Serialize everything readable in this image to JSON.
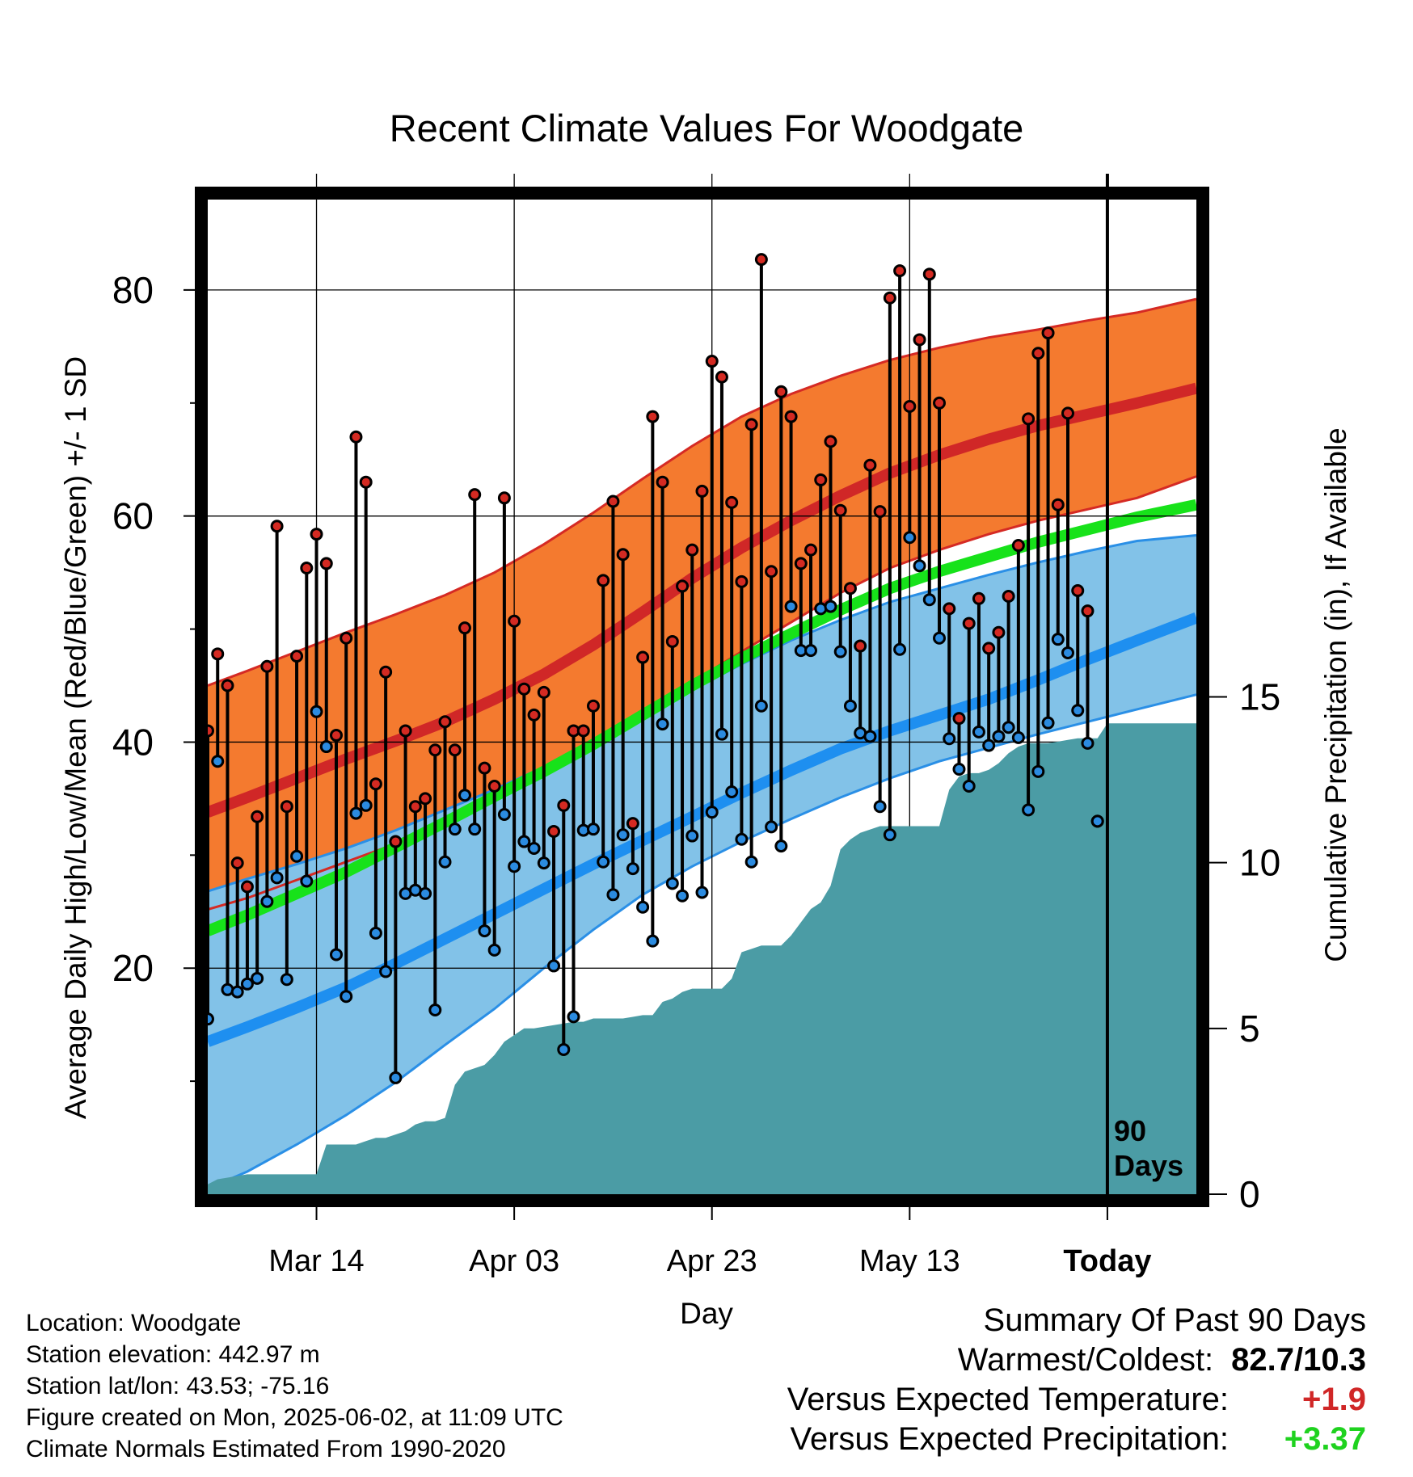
{
  "chart_data": {
    "type": "line",
    "title": "Recent Climate Values For Woodgate",
    "xlabel": "Day",
    "ylabel_left": "Average Daily High/Low/Mean (Red/Blue/Green) +/- 1 SD",
    "ylabel_right": "Cumulative Precipitation (in), If Available",
    "day_range": [
      1,
      101
    ],
    "y_left_range": [
      0,
      88
    ],
    "y_right_range": [
      0,
      30
    ],
    "x_ticks": [
      {
        "day": 12,
        "label": "Mar 14"
      },
      {
        "day": 32,
        "label": "Apr 03"
      },
      {
        "day": 52,
        "label": "Apr 23"
      },
      {
        "day": 72,
        "label": "May 13"
      },
      {
        "day": 92,
        "label": "Today"
      }
    ],
    "y_left_ticks": [
      {
        "value": 20,
        "label": "20"
      },
      {
        "value": 40,
        "label": "40"
      },
      {
        "value": 60,
        "label": "60"
      },
      {
        "value": 80,
        "label": "80"
      }
    ],
    "y_left_minor": [
      10,
      30,
      50,
      70
    ],
    "y_right_ticks": [
      {
        "value": 0,
        "label": "0"
      },
      {
        "value": 5,
        "label": "5"
      },
      {
        "value": 10,
        "label": "10"
      },
      {
        "value": 15,
        "label": "15"
      }
    ],
    "today_day": 92,
    "today_label_line1": "90",
    "today_label_line2": "Days",
    "grid": true,
    "normals": {
      "days": [
        1,
        5,
        10,
        15,
        20,
        25,
        30,
        35,
        40,
        45,
        50,
        55,
        60,
        65,
        70,
        75,
        80,
        85,
        90,
        95,
        101
      ],
      "high_mean": [
        33.8,
        35.1,
        36.8,
        38.5,
        40.1,
        41.8,
        43.8,
        46.0,
        48.6,
        51.5,
        54.5,
        57.2,
        59.6,
        61.8,
        63.8,
        65.4,
        66.8,
        68.0,
        69.0,
        70.0,
        71.3
      ],
      "high_upper": [
        45.0,
        46.3,
        48.0,
        49.7,
        51.3,
        53.0,
        55.0,
        57.5,
        60.3,
        63.3,
        66.2,
        68.8,
        70.8,
        72.4,
        73.8,
        74.9,
        75.8,
        76.5,
        77.3,
        78.0,
        79.2
      ],
      "high_lower": [
        25.2,
        26.2,
        27.8,
        29.4,
        31.0,
        32.8,
        34.8,
        37.0,
        39.5,
        42.3,
        45.3,
        48.0,
        50.6,
        53.2,
        55.4,
        57.0,
        58.4,
        59.6,
        60.6,
        61.6,
        63.5
      ],
      "low_mean": [
        13.5,
        14.8,
        16.5,
        18.3,
        20.4,
        22.6,
        24.8,
        27.0,
        29.2,
        31.3,
        33.4,
        35.5,
        37.5,
        39.4,
        41.0,
        42.4,
        43.8,
        45.5,
        47.3,
        49.0,
        51.0
      ],
      "low_upper": [
        26.8,
        27.9,
        29.2,
        30.6,
        32.2,
        34.0,
        35.8,
        37.8,
        40.0,
        42.2,
        44.6,
        46.9,
        49.0,
        50.8,
        52.4,
        53.6,
        54.8,
        55.9,
        56.9,
        57.8,
        58.3
      ],
      "low_lower": [
        0.5,
        2.0,
        4.4,
        7.0,
        9.9,
        13.2,
        16.4,
        20.0,
        23.4,
        26.5,
        29.0,
        31.2,
        33.2,
        35.1,
        36.8,
        38.3,
        39.5,
        40.7,
        41.8,
        42.9,
        44.2
      ],
      "avg_mean": [
        23.3,
        24.7,
        26.6,
        28.5,
        30.7,
        32.9,
        35.2,
        37.4,
        39.8,
        42.4,
        45.0,
        47.4,
        49.6,
        51.7,
        53.6,
        55.1,
        56.4,
        57.7,
        58.8,
        59.9,
        61.0
      ]
    },
    "observed": {
      "days": [
        1,
        2,
        3,
        4,
        5,
        6,
        7,
        8,
        9,
        10,
        11,
        12,
        13,
        14,
        15,
        16,
        17,
        18,
        19,
        20,
        21,
        22,
        23,
        24,
        25,
        26,
        27,
        28,
        29,
        30,
        31,
        32,
        33,
        34,
        35,
        36,
        37,
        38,
        39,
        40,
        41,
        42,
        43,
        44,
        45,
        46,
        47,
        48,
        49,
        50,
        51,
        52,
        53,
        54,
        55,
        56,
        57,
        58,
        59,
        60,
        61,
        62,
        63,
        64,
        65,
        66,
        67,
        68,
        69,
        70,
        71,
        72,
        73,
        74,
        75,
        76,
        77,
        78,
        79,
        80,
        81,
        82,
        83,
        84,
        85,
        86,
        87,
        88,
        89,
        90,
        91
      ],
      "high": [
        41,
        47.8,
        45,
        29.3,
        27.2,
        33.4,
        46.7,
        59.1,
        34.3,
        47.6,
        55.4,
        58.4,
        55.8,
        40.6,
        49.2,
        67,
        63,
        36.3,
        46.2,
        31.2,
        41,
        34.3,
        35,
        39.3,
        41.8,
        39.3,
        50.1,
        61.9,
        37.7,
        36.1,
        61.6,
        50.7,
        44.7,
        42.4,
        44.4,
        32.1,
        34.4,
        41,
        41,
        43.2,
        54.3,
        61.3,
        56.6,
        32.8,
        47.5,
        68.8,
        63,
        48.9,
        53.8,
        57,
        62.2,
        73.7,
        72.3,
        61.2,
        54.2,
        68.1,
        82.7,
        55.1,
        71,
        68.8,
        55.8,
        57,
        63.2,
        66.6,
        60.5,
        53.6,
        48.5,
        64.5,
        60.4,
        79.3,
        81.7,
        69.7,
        75.6,
        81.4,
        70,
        51.8,
        42.1,
        50.5,
        52.7,
        48.3,
        49.7,
        52.9,
        57.4,
        68.6,
        74.4,
        76.2,
        61,
        69.1,
        53.4,
        51.6,
        33
      ],
      "low": [
        15.5,
        38.3,
        18.1,
        17.9,
        18.6,
        19.1,
        25.9,
        28,
        19,
        29.9,
        27.7,
        42.7,
        39.6,
        21.2,
        17.5,
        33.7,
        34.4,
        23.1,
        19.7,
        10.3,
        26.6,
        26.9,
        26.6,
        16.3,
        29.4,
        32.3,
        35.3,
        32.3,
        23.3,
        21.6,
        33.6,
        29,
        31.2,
        30.6,
        29.3,
        20.2,
        12.8,
        15.7,
        32.2,
        32.3,
        29.4,
        26.5,
        31.8,
        28.8,
        25.4,
        22.4,
        41.6,
        27.5,
        26.4,
        31.7,
        26.7,
        33.8,
        40.7,
        35.6,
        31.4,
        29.4,
        43.2,
        32.5,
        30.8,
        52,
        48.1,
        48.1,
        51.8,
        52,
        48,
        43.2,
        40.8,
        40.5,
        34.3,
        31.8,
        48.2,
        58.1,
        55.6,
        52.6,
        49.2,
        40.3,
        37.6,
        36.1,
        40.9,
        39.7,
        40.5,
        41.3,
        40.4,
        34,
        37.4,
        41.7,
        49.1,
        47.9,
        42.8,
        39.9,
        33
      ]
    },
    "precip_cumulative": {
      "days": [
        1,
        2,
        3,
        4,
        5,
        6,
        7,
        8,
        9,
        10,
        11,
        12,
        13,
        14,
        15,
        16,
        17,
        18,
        19,
        20,
        21,
        22,
        23,
        24,
        25,
        26,
        27,
        28,
        29,
        30,
        31,
        32,
        33,
        34,
        35,
        36,
        37,
        38,
        39,
        40,
        41,
        42,
        43,
        44,
        45,
        46,
        47,
        48,
        49,
        50,
        51,
        52,
        53,
        54,
        55,
        56,
        57,
        58,
        59,
        60,
        61,
        62,
        63,
        64,
        65,
        66,
        67,
        68,
        69,
        70,
        71,
        72,
        73,
        74,
        75,
        76,
        77,
        78,
        79,
        80,
        81,
        82,
        83,
        84,
        85,
        86,
        87,
        88,
        89,
        90,
        91,
        92,
        101
      ],
      "values": [
        0.3,
        0.45,
        0.5,
        0.55,
        0.6,
        0.6,
        0.6,
        0.6,
        0.6,
        0.6,
        0.6,
        0.6,
        1.5,
        1.5,
        1.5,
        1.5,
        1.6,
        1.7,
        1.7,
        1.8,
        1.9,
        2.1,
        2.2,
        2.2,
        2.3,
        3.3,
        3.7,
        3.8,
        3.9,
        4.2,
        4.6,
        4.8,
        5.0,
        5.0,
        5.05,
        5.1,
        5.15,
        5.2,
        5.2,
        5.3,
        5.3,
        5.3,
        5.3,
        5.35,
        5.4,
        5.4,
        5.8,
        5.9,
        6.1,
        6.2,
        6.2,
        6.2,
        6.2,
        6.5,
        7.3,
        7.4,
        7.5,
        7.5,
        7.5,
        7.8,
        8.2,
        8.6,
        8.8,
        9.3,
        10.4,
        10.7,
        10.9,
        11.0,
        11.1,
        11.1,
        11.1,
        11.1,
        11.1,
        11.1,
        11.1,
        12.2,
        12.6,
        12.7,
        12.7,
        12.8,
        13.0,
        13.3,
        13.5,
        13.6,
        13.6,
        13.6,
        13.65,
        13.7,
        13.75,
        13.75,
        13.75,
        14.2,
        14.2
      ]
    }
  },
  "colors": {
    "high_band": "#f47a2f",
    "high_mean_line": "#d02727",
    "high_band_edge": "#d52a24",
    "low_band": "#82c2e8",
    "low_mean_line": "#1e8ff0",
    "low_band_edge": "#2a8fe6",
    "avg_mean_line": "#17e21a",
    "overlap_band": "#a31d1d",
    "precip_fill": "#4b9ca5",
    "high_marker": "#d42a22",
    "low_marker": "#2b8be0"
  },
  "footer": {
    "location": "Location: Woodgate",
    "elevation": "Station elevation: 442.97 m",
    "latlon": "Station lat/lon: 43.53; -75.16",
    "created": "Figure created on Mon, 2025-06-02, at 11:09 UTC",
    "normals_note": "Climate Normals Estimated From 1990-2020"
  },
  "summary": {
    "heading": "Summary Of Past 90 Days",
    "warm_cold_label": "Warmest/Coldest:",
    "warm_cold_value": "82.7/10.3",
    "temp_label": "Versus Expected Temperature:",
    "temp_value": "+1.9",
    "temp_color": "#d02727",
    "precip_label": "Versus Expected Precipitation:",
    "precip_value": "+3.37",
    "precip_color": "#1fd21f"
  }
}
